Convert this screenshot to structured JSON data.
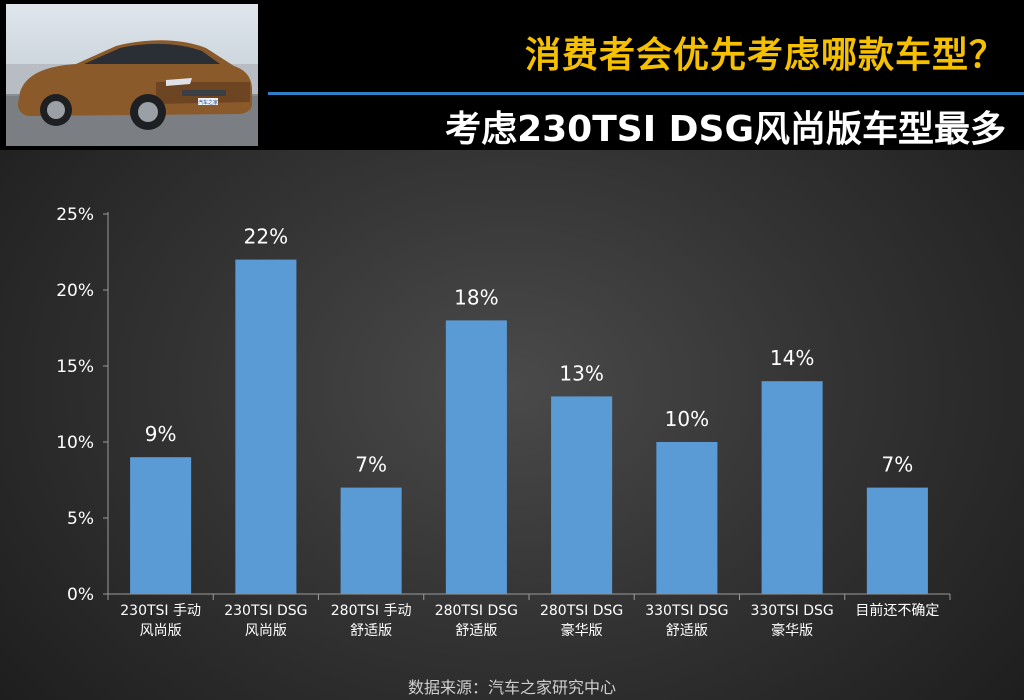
{
  "header": {
    "title": "消费者会优先考虑哪款车型？",
    "subtitle": "考虑230TSI DSG风尚版车型最多",
    "photo_plate": "汽车之家"
  },
  "source_note": "数据来源：汽车之家研究中心",
  "colors": {
    "bar": "#5b9bd5",
    "title": "#f5c000",
    "divider": "#2f7fc8"
  },
  "chart_data": {
    "type": "bar",
    "categories": [
      [
        "230TSI 手动",
        "风尚版"
      ],
      [
        "230TSI  DSG",
        "风尚版"
      ],
      [
        "280TSI 手动",
        "舒适版"
      ],
      [
        "280TSI DSG",
        "舒适版"
      ],
      [
        "280TSI DSG",
        "豪华版"
      ],
      [
        "330TSI DSG",
        "舒适版"
      ],
      [
        "330TSI DSG",
        "豪华版"
      ],
      [
        "目前还不确定",
        ""
      ]
    ],
    "values": [
      9,
      22,
      7,
      18,
      13,
      10,
      14,
      7
    ],
    "value_labels": [
      "9%",
      "22%",
      "7%",
      "18%",
      "13%",
      "10%",
      "14%",
      "7%"
    ],
    "yticks": [
      0,
      5,
      10,
      15,
      20,
      25
    ],
    "ytick_labels": [
      "0%",
      "5%",
      "10%",
      "15%",
      "20%",
      "25%"
    ],
    "ylim": [
      0,
      25
    ],
    "grid": false,
    "legend": "none"
  }
}
